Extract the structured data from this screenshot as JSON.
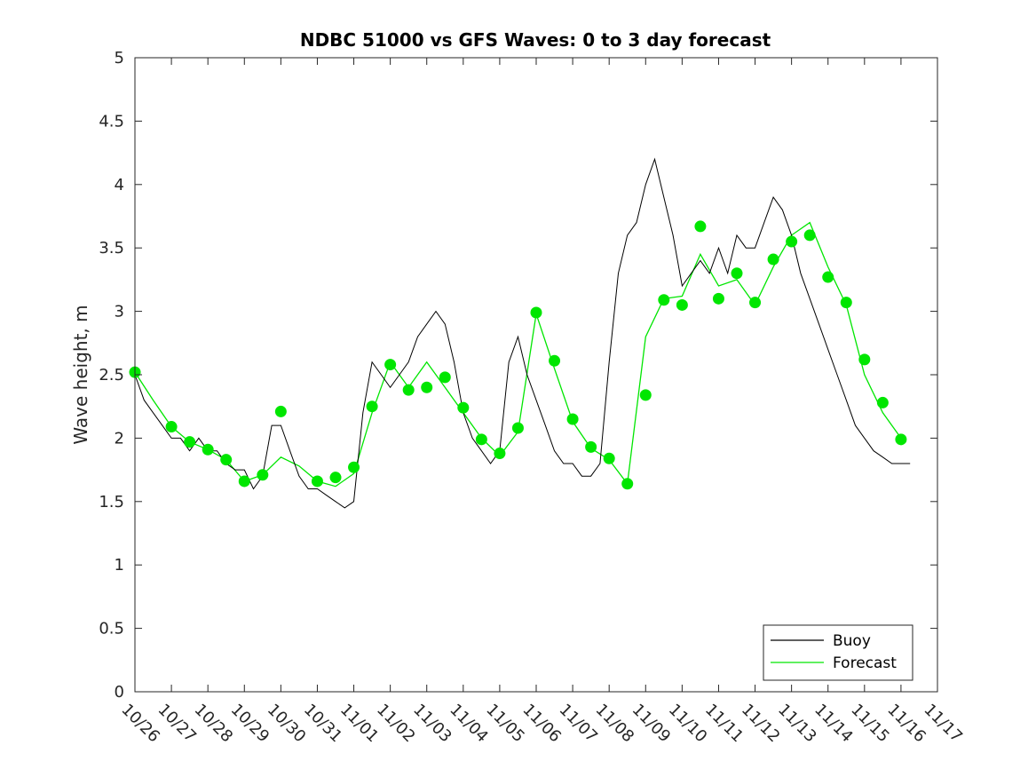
{
  "chart_data": {
    "type": "line",
    "title": "NDBC 51000 vs GFS Waves: 0 to 3 day forecast",
    "ylabel": "Wave height, m",
    "xlabel": "",
    "ylim": [
      0,
      5
    ],
    "yticks": [
      0,
      0.5,
      1,
      1.5,
      2,
      2.5,
      3,
      3.5,
      4,
      4.5,
      5
    ],
    "ytick_labels": [
      "0",
      "0.5",
      "1",
      "1.5",
      "2",
      "2.5",
      "3",
      "3.5",
      "4",
      "4.5",
      "5"
    ],
    "xticks": [
      "10/26",
      "10/27",
      "10/28",
      "10/29",
      "10/30",
      "10/31",
      "11/01",
      "11/02",
      "11/03",
      "11/04",
      "11/05",
      "11/06",
      "11/07",
      "11/08",
      "11/09",
      "11/10",
      "11/11",
      "11/12",
      "11/13",
      "11/14",
      "11/15",
      "11/16",
      "11/17"
    ],
    "grid": false,
    "legend_position": "bottom-right",
    "colors": {
      "buoy": "#000000",
      "forecast": "#00e600"
    },
    "series": [
      {
        "name": "Buoy",
        "x": [
          0.0,
          0.25,
          0.5,
          0.75,
          1.0,
          1.25,
          1.5,
          1.75,
          2.0,
          2.25,
          2.5,
          2.75,
          3.0,
          3.25,
          3.5,
          3.75,
          4.0,
          4.25,
          4.5,
          4.75,
          5.0,
          5.25,
          5.5,
          5.75,
          6.0,
          6.25,
          6.5,
          6.75,
          7.0,
          7.25,
          7.5,
          7.75,
          8.0,
          8.25,
          8.5,
          8.75,
          9.0,
          9.25,
          9.5,
          9.75,
          10.0,
          10.25,
          10.5,
          10.75,
          11.0,
          11.25,
          11.5,
          11.75,
          12.0,
          12.25,
          12.5,
          12.75,
          13.0,
          13.25,
          13.5,
          13.75,
          14.0,
          14.25,
          14.5,
          14.75,
          15.0,
          15.25,
          15.5,
          15.75,
          16.0,
          16.25,
          16.5,
          16.75,
          17.0,
          17.25,
          17.5,
          17.75,
          18.0,
          18.25,
          18.5,
          18.75,
          19.0,
          19.25,
          19.5,
          19.75,
          20.0,
          20.25,
          20.5,
          20.75,
          21.0,
          21.25
        ],
        "values": [
          2.5,
          2.3,
          2.2,
          2.1,
          2.0,
          2.0,
          1.9,
          2.0,
          1.9,
          1.9,
          1.8,
          1.75,
          1.75,
          1.6,
          1.7,
          2.1,
          2.1,
          1.9,
          1.7,
          1.6,
          1.6,
          1.55,
          1.5,
          1.45,
          1.5,
          2.2,
          2.6,
          2.5,
          2.4,
          2.5,
          2.6,
          2.8,
          2.9,
          3.0,
          2.9,
          2.6,
          2.2,
          2.0,
          1.9,
          1.8,
          1.9,
          2.6,
          2.8,
          2.5,
          2.3,
          2.1,
          1.9,
          1.8,
          1.8,
          1.7,
          1.7,
          1.8,
          2.6,
          3.3,
          3.6,
          3.7,
          4.0,
          4.2,
          3.9,
          3.6,
          3.2,
          3.3,
          3.4,
          3.3,
          3.5,
          3.3,
          3.6,
          3.5,
          3.5,
          3.7,
          3.9,
          3.8,
          3.6,
          3.3,
          3.1,
          2.9,
          2.7,
          2.5,
          2.3,
          2.1,
          2.0,
          1.9,
          1.85,
          1.8,
          1.8,
          1.8
        ]
      },
      {
        "name": "Forecast",
        "x": [
          0.0,
          0.5,
          1.0,
          1.5,
          2.0,
          2.5,
          3.0,
          3.5,
          4.0,
          4.5,
          5.0,
          5.5,
          6.0,
          6.5,
          7.0,
          7.5,
          8.0,
          8.5,
          9.0,
          9.5,
          10.0,
          10.5,
          11.0,
          11.5,
          12.0,
          12.5,
          13.0,
          13.5,
          14.0,
          14.5,
          15.0,
          15.5,
          16.0,
          16.5,
          17.0,
          17.5,
          18.0,
          18.5,
          19.0,
          19.5,
          20.0,
          20.5,
          21.0
        ],
        "values": [
          2.52,
          2.3,
          2.09,
          1.97,
          1.91,
          1.83,
          1.66,
          1.71,
          1.85,
          1.78,
          1.66,
          1.62,
          1.72,
          2.2,
          2.6,
          2.4,
          2.6,
          2.4,
          2.2,
          2.0,
          1.86,
          2.05,
          2.98,
          2.55,
          2.13,
          1.92,
          1.83,
          1.64,
          2.8,
          3.1,
          3.12,
          3.45,
          3.2,
          3.25,
          3.05,
          3.35,
          3.6,
          3.7,
          3.35,
          3.05,
          2.5,
          2.2,
          2.0
        ]
      }
    ],
    "forecast_markers": {
      "x": [
        0.0,
        1.0,
        1.5,
        2.0,
        2.5,
        3.0,
        3.5,
        4.0,
        5.0,
        5.5,
        6.0,
        6.5,
        7.0,
        7.5,
        8.0,
        8.5,
        9.0,
        9.5,
        10.0,
        10.5,
        11.0,
        11.5,
        12.0,
        12.5,
        13.0,
        13.5,
        14.0,
        14.5,
        15.0,
        15.5,
        16.0,
        16.5,
        17.0,
        17.5,
        18.0,
        18.5,
        19.0,
        19.5,
        20.0,
        20.5,
        21.0
      ],
      "values": [
        2.52,
        2.09,
        1.97,
        1.91,
        1.83,
        1.66,
        1.71,
        2.21,
        1.66,
        1.69,
        1.77,
        2.25,
        2.58,
        2.38,
        2.4,
        2.48,
        2.24,
        1.99,
        1.88,
        2.08,
        2.99,
        2.61,
        2.15,
        1.93,
        1.84,
        1.64,
        2.34,
        3.09,
        3.05,
        3.67,
        3.1,
        3.3,
        3.07,
        3.41,
        3.55,
        3.6,
        3.27,
        3.07,
        2.62,
        2.28,
        1.99
      ]
    }
  }
}
